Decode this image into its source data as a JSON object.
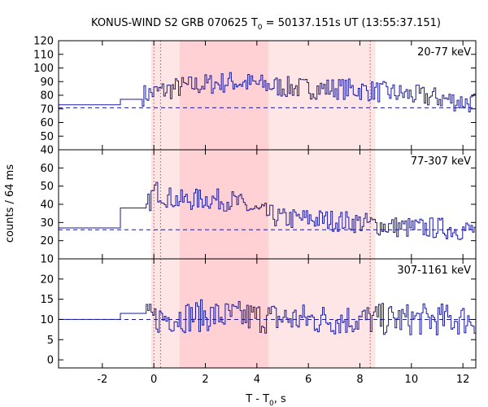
{
  "chart_data": {
    "type": "line",
    "title": {
      "prefix": "KONUS-WIND S2 GRB 070625 T",
      "sub": "0",
      "suffix": " = 50137.151s UT (13:55:37.151)"
    },
    "xlabel": {
      "prefix": "T - T",
      "sub": "0",
      "suffix": ", s"
    },
    "ylabel": "counts / 64 ms",
    "xlim": [
      -3.7,
      12.5
    ],
    "x_ticks": [
      -2,
      0,
      2,
      4,
      6,
      8,
      10,
      12
    ],
    "x_tick_labels": [
      "-2",
      "0",
      "2",
      "4",
      "6",
      "8",
      "10",
      "12"
    ],
    "bin_width_s": 0.064,
    "colors": {
      "line": "#1a1a9c",
      "band_light": "#ffe6e6",
      "band_dark": "#ffd0d4",
      "marker": "#c05050"
    },
    "shaded_intervals": [
      {
        "x0": -0.1,
        "x1": 8.6,
        "shade": "light"
      },
      {
        "x0": 1.0,
        "x1": 4.45,
        "shade": "dark"
      }
    ],
    "vertical_markers": [
      0.0,
      0.26,
      8.4
    ],
    "panels": [
      {
        "label": "20-77 keV",
        "ylim": [
          40,
          120
        ],
        "yticks": [
          40,
          50,
          60,
          70,
          80,
          90,
          100,
          110,
          120
        ],
        "background": 70.8,
        "pre_steps": [
          {
            "x0": -3.7,
            "x1": -1.3,
            "y": 73
          },
          {
            "x0": -1.3,
            "x1": -0.45,
            "y": 77
          }
        ],
        "series_start": -0.45,
        "series_end": 12.5,
        "envelope": [
          [
            -0.45,
            80
          ],
          [
            0.0,
            82
          ],
          [
            0.5,
            84
          ],
          [
            1.0,
            86
          ],
          [
            2.0,
            88
          ],
          [
            3.0,
            90
          ],
          [
            4.0,
            88
          ],
          [
            5.0,
            86
          ],
          [
            6.0,
            85
          ],
          [
            7.0,
            85
          ],
          [
            8.0,
            84
          ],
          [
            9.0,
            82
          ],
          [
            10.0,
            80
          ],
          [
            11.0,
            78
          ],
          [
            12.0,
            75
          ],
          [
            12.5,
            74
          ]
        ],
        "noise_amplitude": 8
      },
      {
        "label": "77-307 keV",
        "ylim": [
          10,
          70
        ],
        "yticks": [
          10,
          20,
          30,
          40,
          50,
          60
        ],
        "background": 26,
        "pre_steps": [
          {
            "x0": -3.7,
            "x1": -1.3,
            "y": 27
          },
          {
            "x0": -1.3,
            "x1": -0.3,
            "y": 38
          }
        ],
        "series_start": -0.3,
        "series_end": 12.5,
        "envelope": [
          [
            -0.3,
            38
          ],
          [
            0.0,
            48
          ],
          [
            0.5,
            44
          ],
          [
            1.0,
            42
          ],
          [
            2.0,
            43
          ],
          [
            3.0,
            42
          ],
          [
            4.0,
            36
          ],
          [
            5.0,
            32
          ],
          [
            6.0,
            32
          ],
          [
            7.0,
            31
          ],
          [
            8.0,
            30
          ],
          [
            9.0,
            28
          ],
          [
            10.0,
            27
          ],
          [
            11.0,
            27
          ],
          [
            12.0,
            26
          ],
          [
            12.5,
            26
          ]
        ],
        "noise_amplitude": 6
      },
      {
        "label": "307-1161 keV",
        "ylim": [
          -2,
          25
        ],
        "yticks": [
          0,
          5,
          10,
          15,
          20
        ],
        "background": 10,
        "pre_steps": [
          {
            "x0": -3.7,
            "x1": -1.3,
            "y": 10
          },
          {
            "x0": -1.3,
            "x1": -0.3,
            "y": 11.5
          }
        ],
        "series_start": -0.3,
        "series_end": 12.5,
        "envelope": [
          [
            -0.3,
            10
          ],
          [
            0.5,
            10.5
          ],
          [
            2.0,
            11
          ],
          [
            4.0,
            10.5
          ],
          [
            6.0,
            10
          ],
          [
            8.0,
            10
          ],
          [
            10.0,
            10
          ],
          [
            12.5,
            10
          ]
        ],
        "noise_amplitude": 4
      }
    ]
  }
}
